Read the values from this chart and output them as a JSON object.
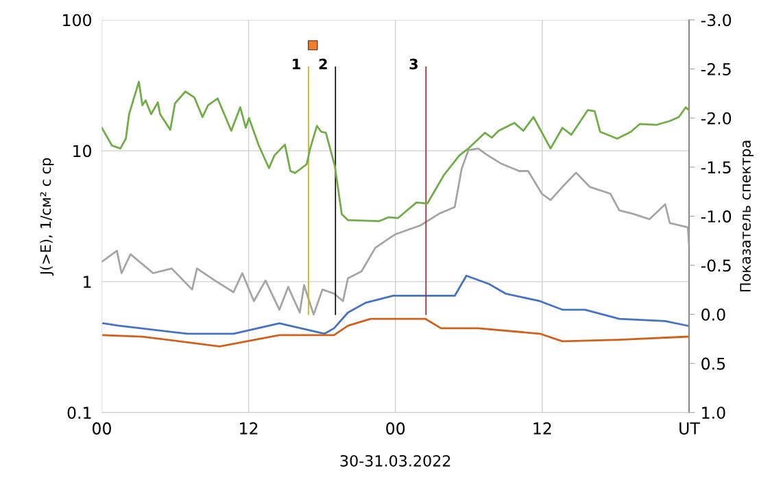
{
  "chart_data": {
    "type": "line",
    "xlabel": "30-31.03.2022",
    "ylabel": "J(>E), 1/см² с ср",
    "y2label": "Показатель спектра",
    "log": "y",
    "grid": true,
    "legend": false,
    "marker": "none",
    "line_style": "solid",
    "xlim": [
      "2022-03-30T00:00",
      "2022-04-01T00:00"
    ],
    "xticks": [
      {
        "value": "2022-03-30T00:00",
        "label": "00"
      },
      {
        "value": "2022-03-30T12:00",
        "label": "12"
      },
      {
        "value": "2022-03-31T00:00",
        "label": "00"
      },
      {
        "value": "2022-03-31T12:00",
        "label": "12"
      },
      {
        "value": "2022-04-01T00:00",
        "label": "UT"
      }
    ],
    "ylim": [
      0.1,
      100
    ],
    "yticks": [
      0.1,
      1,
      10,
      100
    ],
    "y2lim": [
      1.0,
      -3.0
    ],
    "y2ticks": [
      {
        "value": 1.0,
        "label": "1.0"
      },
      {
        "value": 0.5,
        "label": "0.5"
      },
      {
        "value": 0.0,
        "label": "0.0"
      },
      {
        "value": -0.5,
        "label": "-0.5"
      },
      {
        "value": -1.0,
        "label": "-1.0"
      },
      {
        "value": -1.5,
        "label": "-1.5"
      },
      {
        "value": -2.0,
        "label": "-2.0"
      },
      {
        "value": -2.5,
        "label": "-2.5"
      },
      {
        "value": -3.0,
        "label": "-3.0"
      }
    ],
    "ref_lines": [
      {
        "axis": "x",
        "value": "2022-03-30T16:54",
        "color": "#c8b400"
      },
      {
        "axis": "x",
        "value": "2022-03-30T19:06",
        "color": "#000000"
      },
      {
        "axis": "x",
        "value": "2022-03-31T02:30",
        "color": "#a0202c"
      }
    ],
    "annotations": [
      {
        "text": "1",
        "x": "2022-03-30T16:54",
        "y": 45
      },
      {
        "text": "2",
        "x": "2022-03-30T19:06",
        "y": 45
      },
      {
        "text": "3",
        "x": "2022-03-31T02:30",
        "y": 45
      }
    ],
    "series": [
      {
        "color": "#a5a5a5",
        "x": [
          "2022-03-30T00:00",
          "2022-03-30T01:14",
          "2022-03-30T01:37",
          "2022-03-30T02:21",
          "2022-03-30T04:12",
          "2022-03-30T05:43",
          "2022-03-30T07:23",
          "2022-03-30T07:47",
          "2022-03-30T09:14",
          "2022-03-30T10:46",
          "2022-03-30T11:29",
          "2022-03-30T12:26",
          "2022-03-30T13:23",
          "2022-03-30T14:31",
          "2022-03-30T15:14",
          "2022-03-30T16:11",
          "2022-03-30T16:32",
          "2022-03-30T17:19",
          "2022-03-30T18:02",
          "2022-03-30T18:59",
          "2022-03-30T19:43",
          "2022-03-30T20:07",
          "2022-03-30T21:14",
          "2022-03-30T22:21",
          "2022-03-30T23:38",
          "2022-03-31T00:00",
          "2022-03-31T02:03",
          "2022-03-31T03:34",
          "2022-03-31T04:51",
          "2022-03-31T05:25",
          "2022-03-31T05:58",
          "2022-03-31T06:46",
          "2022-03-31T07:29",
          "2022-03-31T08:37",
          "2022-03-31T10:07",
          "2022-03-31T10:51",
          "2022-03-31T11:58",
          "2022-03-31T12:41",
          "2022-03-31T13:39",
          "2022-03-31T14:46",
          "2022-03-31T15:53",
          "2022-03-31T17:34",
          "2022-03-31T18:18",
          "2022-03-31T19:25",
          "2022-03-31T20:46",
          "2022-03-31T22:03",
          "2022-03-31T22:26",
          "2022-03-31T23:54",
          "2022-04-01T00:00"
        ],
        "values": [
          1.42,
          1.72,
          1.16,
          1.62,
          1.16,
          1.26,
          0.87,
          1.26,
          1.02,
          0.83,
          1.16,
          0.71,
          1.02,
          0.61,
          0.91,
          0.58,
          0.94,
          0.56,
          0.87,
          0.81,
          0.71,
          1.06,
          1.2,
          1.81,
          2.19,
          2.3,
          2.69,
          3.3,
          3.72,
          7.3,
          10.1,
          10.4,
          9.3,
          8.0,
          7.0,
          7.0,
          4.7,
          4.2,
          5.3,
          6.8,
          5.3,
          4.7,
          3.5,
          3.3,
          3.0,
          3.9,
          2.8,
          2.6,
          1.9
        ]
      },
      {
        "color": "#4472c4",
        "x": [
          "2022-03-30T00:07",
          "2022-03-30T01:24",
          "2022-03-30T07:00",
          "2022-03-30T10:46",
          "2022-03-30T14:31",
          "2022-03-30T18:13",
          "2022-03-30T18:59",
          "2022-03-30T20:07",
          "2022-03-30T21:34",
          "2022-03-30T23:49",
          "2022-03-31T02:26",
          "2022-03-31T04:51",
          "2022-03-31T05:48",
          "2022-03-31T07:39",
          "2022-03-31T09:00",
          "2022-03-31T11:48",
          "2022-03-31T13:39",
          "2022-03-31T15:30",
          "2022-03-31T18:18",
          "2022-03-31T22:03",
          "2022-03-31T23:54"
        ],
        "values": [
          0.48,
          0.46,
          0.4,
          0.4,
          0.48,
          0.4,
          0.44,
          0.58,
          0.69,
          0.78,
          0.78,
          0.78,
          1.11,
          0.96,
          0.81,
          0.71,
          0.61,
          0.61,
          0.52,
          0.5,
          0.46
        ]
      },
      {
        "color": "#d0601a",
        "x": [
          "2022-03-30T00:07",
          "2022-03-30T03:19",
          "2022-03-30T09:38",
          "2022-03-30T14:31",
          "2022-03-30T18:59",
          "2022-03-30T20:07",
          "2022-03-30T21:58",
          "2022-03-31T00:02",
          "2022-03-31T02:26",
          "2022-03-31T03:44",
          "2022-03-31T06:46",
          "2022-03-31T11:48",
          "2022-03-31T13:39",
          "2022-03-31T18:18",
          "2022-03-31T23:54"
        ],
        "values": [
          0.39,
          0.38,
          0.32,
          0.39,
          0.39,
          0.46,
          0.52,
          0.52,
          0.52,
          0.44,
          0.44,
          0.4,
          0.35,
          0.36,
          0.38
        ]
      },
      {
        "color": "#70ad47",
        "axis": "y2",
        "x": [
          "2022-03-30T00:00",
          "2022-03-30T00:50",
          "2022-03-30T01:31",
          "2022-03-30T01:58",
          "2022-03-30T02:14",
          "2022-03-30T03:02",
          "2022-03-30T03:19",
          "2022-03-30T03:35",
          "2022-03-30T04:02",
          "2022-03-30T04:35",
          "2022-03-30T04:46",
          "2022-03-30T05:36",
          "2022-03-30T05:59",
          "2022-03-30T06:50",
          "2022-03-30T07:34",
          "2022-03-30T08:14",
          "2022-03-30T08:41",
          "2022-03-30T09:28",
          "2022-03-30T10:35",
          "2022-03-30T11:19",
          "2022-03-30T11:46",
          "2022-03-30T12:02",
          "2022-03-30T12:50",
          "2022-03-30T13:40",
          "2022-03-30T14:07",
          "2022-03-30T14:58",
          "2022-03-30T15:25",
          "2022-03-30T15:48",
          "2022-03-30T16:45",
          "2022-03-30T17:02",
          "2022-03-30T17:35",
          "2022-03-30T17:56",
          "2022-03-30T18:19",
          "2022-03-30T19:03",
          "2022-03-30T19:37",
          "2022-03-30T20:07",
          "2022-03-30T22:41",
          "2022-03-30T23:28",
          "2022-03-31T00:12",
          "2022-03-31T01:43",
          "2022-03-31T02:37",
          "2022-03-31T03:58",
          "2022-03-31T05:14",
          "2022-03-31T05:58",
          "2022-03-31T07:19",
          "2022-03-31T07:53",
          "2022-03-31T08:26",
          "2022-03-31T09:44",
          "2022-03-31T10:27",
          "2022-03-31T11:17",
          "2022-03-31T12:41",
          "2022-03-31T13:39",
          "2022-03-31T14:23",
          "2022-03-31T15:43",
          "2022-03-31T16:17",
          "2022-03-31T16:44",
          "2022-03-31T18:08",
          "2022-03-31T19:15",
          "2022-03-31T19:59",
          "2022-03-31T21:19",
          "2022-03-31T22:26",
          "2022-03-31T23:10",
          "2022-03-31T23:44",
          "2022-04-01T00:00"
        ],
        "values": [
          -1.9,
          -1.72,
          -1.69,
          -1.79,
          -2.04,
          -2.37,
          -2.13,
          -2.18,
          -2.04,
          -2.16,
          -2.04,
          -1.88,
          -2.15,
          -2.27,
          -2.21,
          -2.01,
          -2.13,
          -2.2,
          -1.87,
          -2.11,
          -1.9,
          -2.0,
          -1.72,
          -1.49,
          -1.62,
          -1.73,
          -1.46,
          -1.44,
          -1.53,
          -1.69,
          -1.92,
          -1.86,
          -1.85,
          -1.51,
          -1.02,
          -0.96,
          -0.95,
          -0.99,
          -0.98,
          -1.14,
          -1.13,
          -1.42,
          -1.62,
          -1.69,
          -1.85,
          -1.8,
          -1.87,
          -1.95,
          -1.87,
          -2.01,
          -1.69,
          -1.9,
          -1.83,
          -2.08,
          -2.07,
          -1.86,
          -1.79,
          -1.86,
          -1.94,
          -1.93,
          -1.97,
          -2.01,
          -2.11,
          -2.08
        ]
      },
      {
        "type": "scatter",
        "marker": "square",
        "color": "#ed7d31",
        "x": [
          "2022-03-30T17:15"
        ],
        "values": [
          64
        ]
      }
    ]
  }
}
